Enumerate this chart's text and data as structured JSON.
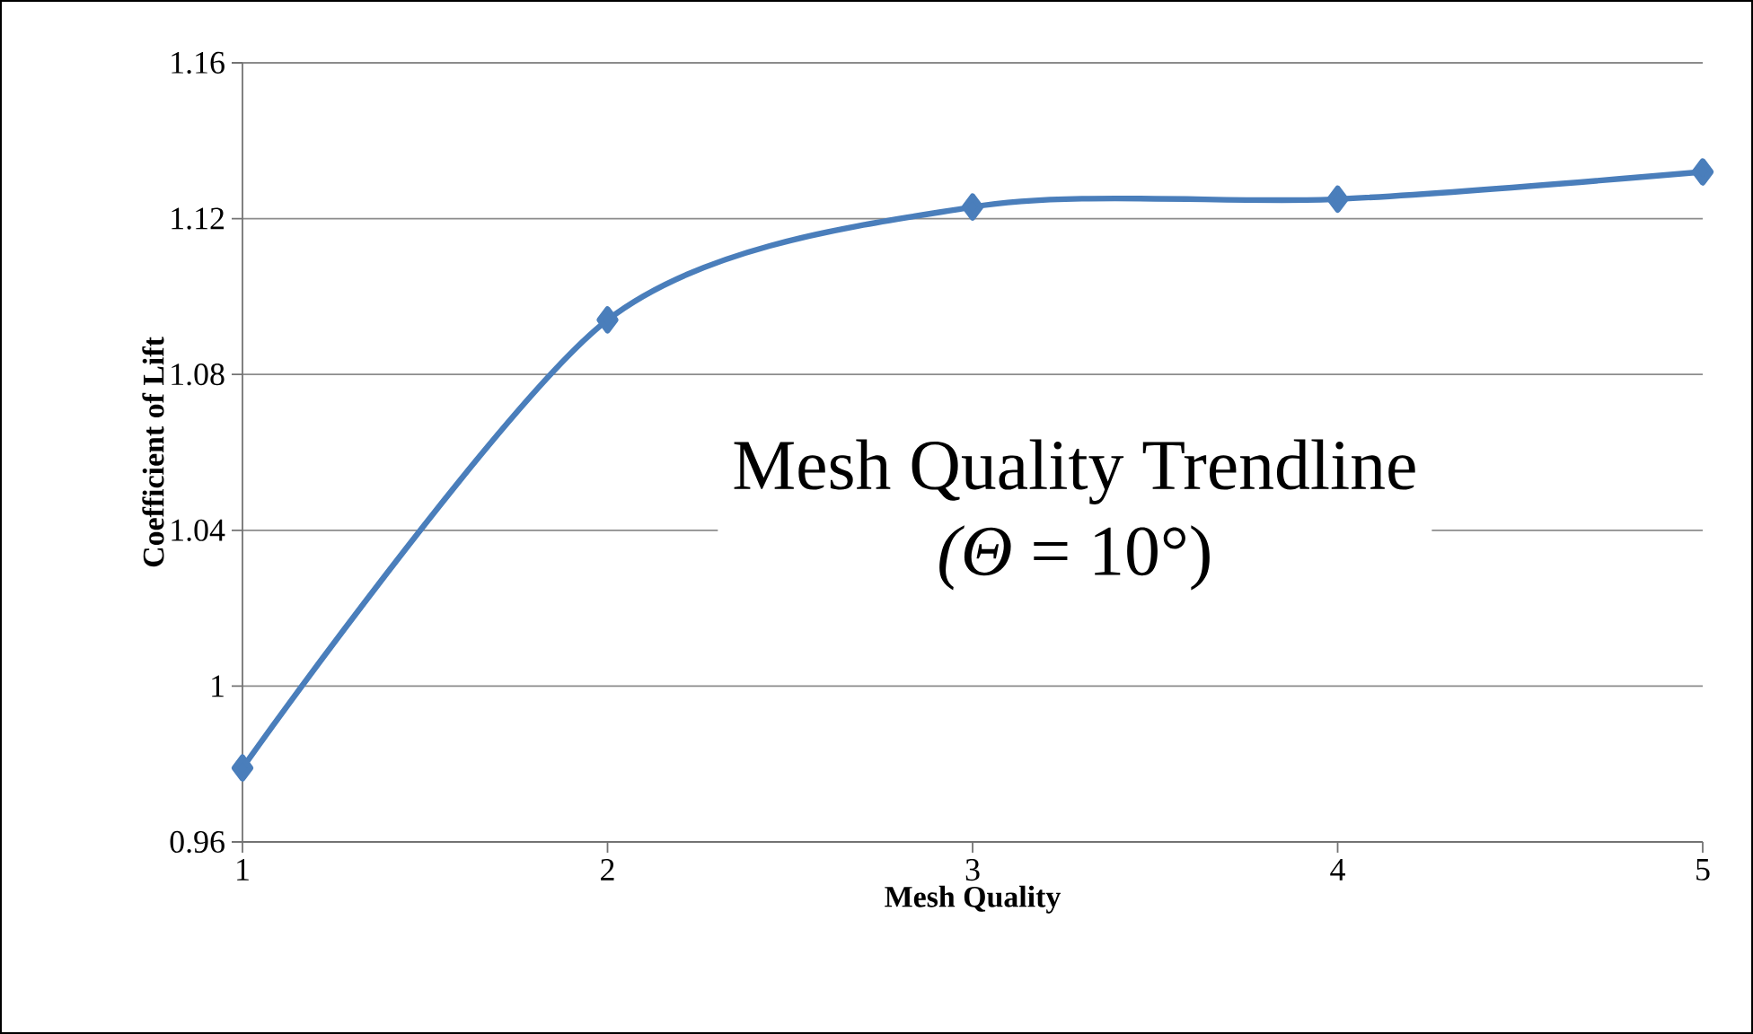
{
  "chart_data": {
    "type": "line",
    "title": "Mesh Quality Trendline",
    "subtitle": "*(Θ* = 10°)",
    "xlabel": "Mesh Quality",
    "ylabel": "Coefficient of Lift",
    "x": [
      1,
      2,
      3,
      4,
      5
    ],
    "series": [
      {
        "color": "#4a7ebb",
        "values": [
          0.979,
          1.094,
          1.123,
          1.125,
          1.132
        ]
      }
    ],
    "xlim": [
      1,
      5
    ],
    "xticks": [
      1,
      2,
      3,
      4,
      5
    ],
    "ylim": [
      0.96,
      1.16
    ],
    "yticks": [
      {
        "value": 0.96,
        "label": "0.96"
      },
      {
        "value": 1.0,
        "label": "1"
      },
      {
        "value": 1.04,
        "label": "1.04"
      },
      {
        "value": 1.08,
        "label": "1.08"
      },
      {
        "value": 1.12,
        "label": "1.12"
      },
      {
        "value": 1.16,
        "label": "1.16"
      }
    ],
    "grid": "y",
    "marker": "diamond",
    "line_style": "solid"
  }
}
